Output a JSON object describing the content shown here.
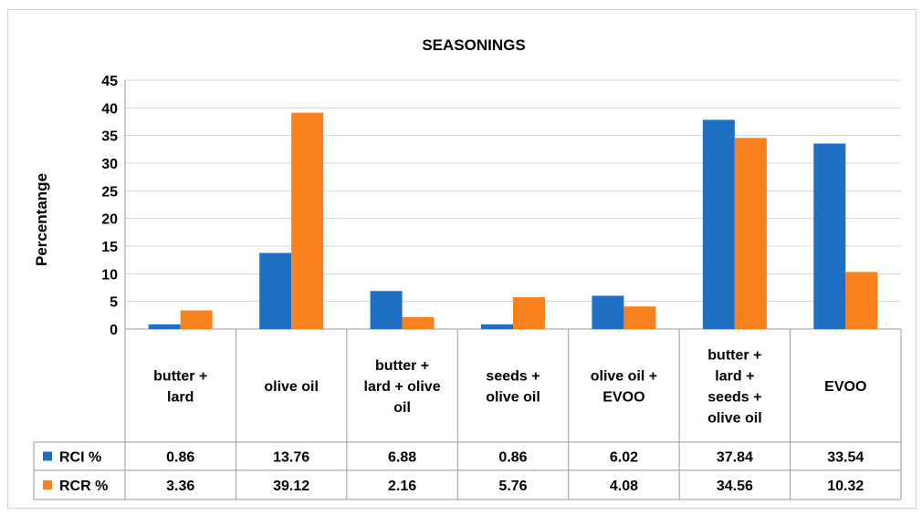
{
  "chart_data": {
    "type": "bar",
    "title": "SEASONINGS",
    "ylabel": "Percentange",
    "xlabel": "",
    "ylim": [
      0,
      45
    ],
    "y_ticks": [
      "0",
      "5",
      "10",
      "15",
      "20",
      "25",
      "30",
      "35",
      "40",
      "45"
    ],
    "grid": true,
    "legend": "data-table",
    "categories": [
      [
        "butter +",
        "lard"
      ],
      [
        "olive oil"
      ],
      [
        "butter +",
        "lard + olive",
        "oil"
      ],
      [
        "seeds +",
        "olive oil"
      ],
      [
        "olive oil +",
        "EVOO"
      ],
      [
        "butter +",
        "lard +",
        "seeds +",
        "olive oil"
      ],
      [
        "EVOO"
      ]
    ],
    "series": [
      {
        "name": "RCI %",
        "color": "#1f6fc4",
        "values": [
          0.86,
          13.76,
          6.88,
          0.86,
          6.02,
          37.84,
          33.54
        ],
        "labels": [
          "0.86",
          "13.76",
          "6.88",
          "0.86",
          "6.02",
          "37.84",
          "33.54"
        ]
      },
      {
        "name": "RCR %",
        "color": "#f7821d",
        "values": [
          3.36,
          39.12,
          2.16,
          5.76,
          4.08,
          34.56,
          10.32
        ],
        "labels": [
          "3.36",
          "39.12",
          "2.16",
          "5.76",
          "4.08",
          "34.56",
          "10.32"
        ]
      }
    ]
  }
}
